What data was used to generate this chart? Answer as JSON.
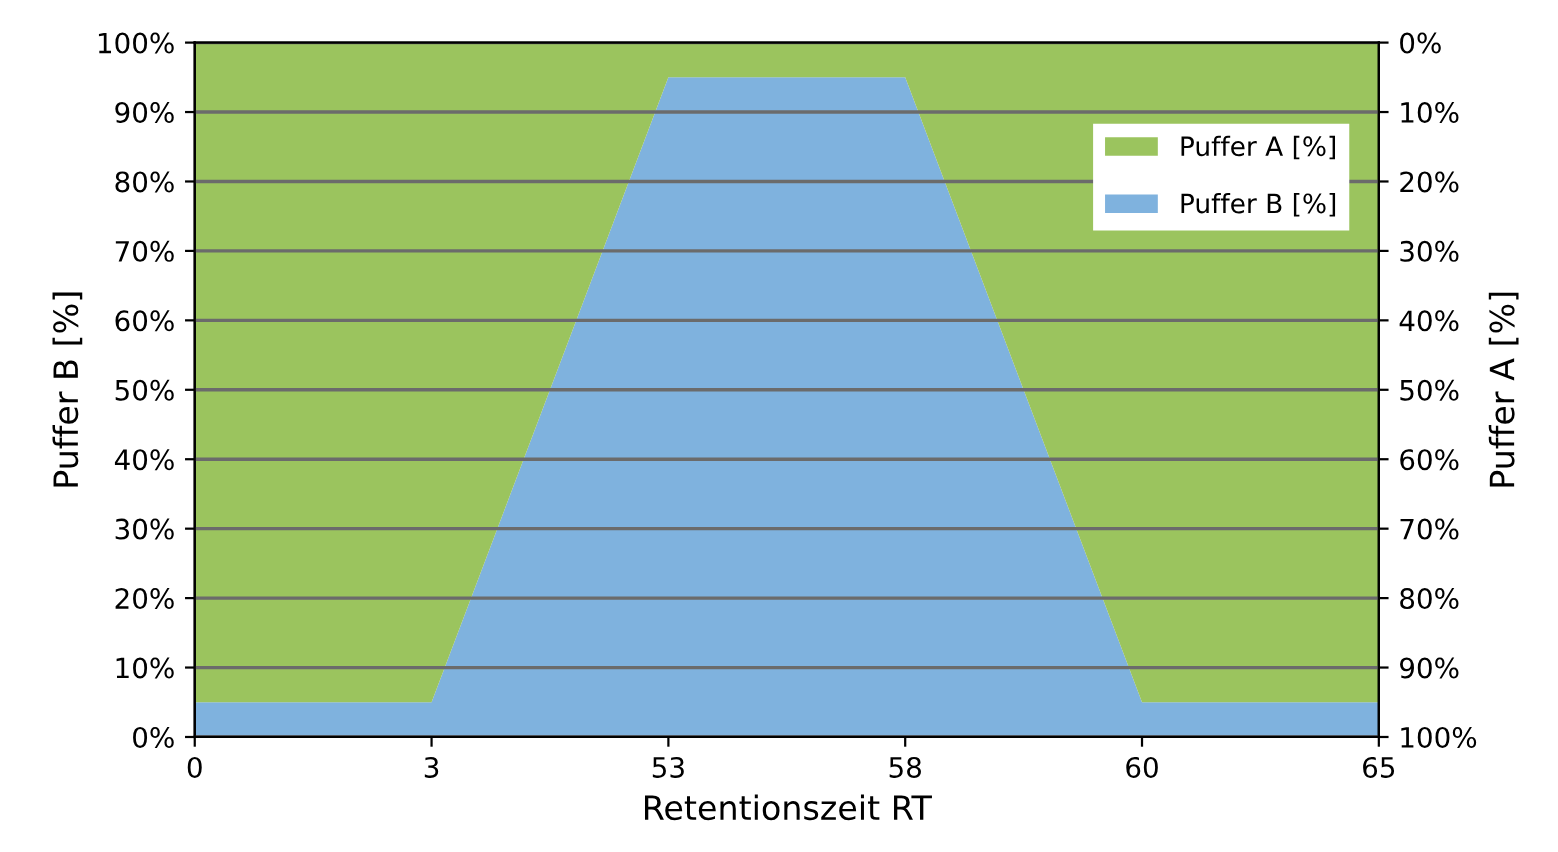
{
  "chart_data": {
    "type": "area",
    "stacked": true,
    "xlabel": "Retentionszeit RT",
    "ylabel": "Puffer B [%]",
    "y2label": "Puffer A [%]",
    "categories": [
      "0",
      "3",
      "53",
      "58",
      "60",
      "65"
    ],
    "series": [
      {
        "name": "Puffer B [%]",
        "color": "#7fb2de",
        "values": [
          5,
          5,
          95,
          95,
          5,
          5
        ]
      },
      {
        "name": "Puffer A [%]",
        "color": "#9bc45e",
        "values": [
          95,
          95,
          5,
          5,
          95,
          95
        ]
      }
    ],
    "ylim": [
      0,
      100
    ],
    "yticks": [
      {
        "value": 0,
        "label": "0%"
      },
      {
        "value": 10,
        "label": "10%"
      },
      {
        "value": 20,
        "label": "20%"
      },
      {
        "value": 30,
        "label": "30%"
      },
      {
        "value": 40,
        "label": "40%"
      },
      {
        "value": 50,
        "label": "50%"
      },
      {
        "value": 60,
        "label": "60%"
      },
      {
        "value": 70,
        "label": "70%"
      },
      {
        "value": 80,
        "label": "80%"
      },
      {
        "value": 90,
        "label": "90%"
      },
      {
        "value": 100,
        "label": "100%"
      }
    ],
    "y2lim": [
      100,
      0
    ],
    "y2ticks": [
      {
        "value": 0,
        "label": "0%"
      },
      {
        "value": 10,
        "label": "10%"
      },
      {
        "value": 20,
        "label": "20%"
      },
      {
        "value": 30,
        "label": "30%"
      },
      {
        "value": 40,
        "label": "40%"
      },
      {
        "value": 50,
        "label": "50%"
      },
      {
        "value": 60,
        "label": "60%"
      },
      {
        "value": 70,
        "label": "70%"
      },
      {
        "value": 80,
        "label": "80%"
      },
      {
        "value": 90,
        "label": "90%"
      },
      {
        "value": 100,
        "label": "100%"
      }
    ],
    "grid": "y",
    "legend": "top right"
  }
}
